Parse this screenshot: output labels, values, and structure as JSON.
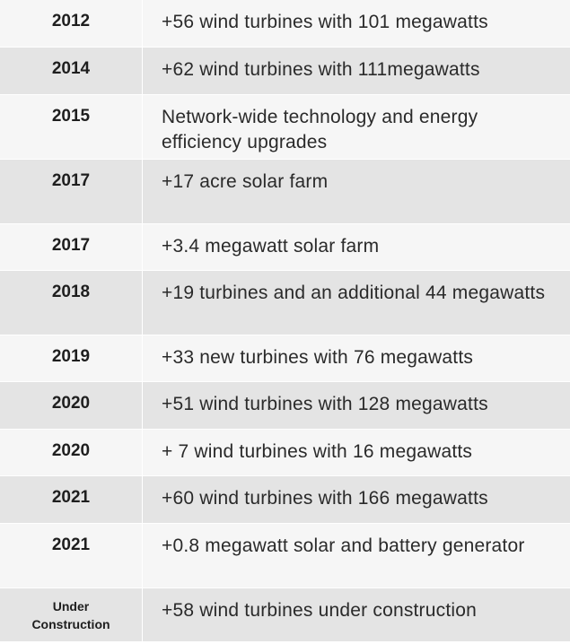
{
  "rows": [
    {
      "year": "2012",
      "text": "+56 wind turbines with 101 megawatts"
    },
    {
      "year": "2014",
      "text": "+62 wind turbines with 111megawatts"
    },
    {
      "year": "2015",
      "text": "Network-wide technology and energy efficiency upgrades"
    },
    {
      "year": "2017",
      "text": "+17 acre solar farm"
    },
    {
      "year": "2017",
      "text": "+3.4 megawatt solar farm"
    },
    {
      "year": "2018",
      "text": "+19 turbines and an additional 44 megawatts"
    },
    {
      "year": "2019",
      "text": "+33 new turbines with 76 megawatts"
    },
    {
      "year": "2020",
      "text": "+51 wind turbines with 128 megawatts"
    },
    {
      "year": "2020",
      "text": "+ 7 wind turbines with 16 megawatts"
    },
    {
      "year": "2021",
      "text": "+60 wind turbines with 166 megawatts"
    },
    {
      "year": "2021",
      "text": "+0.8 megawatt solar and battery generator"
    },
    {
      "year_line1": "Under",
      "year_line2": "Construction",
      "text": "+58 wind turbines under construction"
    }
  ]
}
